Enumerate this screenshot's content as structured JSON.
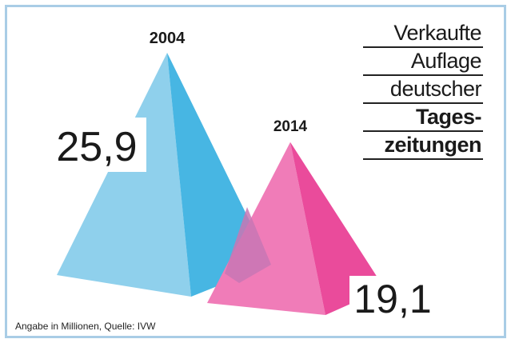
{
  "title_lines": [
    {
      "text": "Verkaufte",
      "bold": false
    },
    {
      "text": "Auflage",
      "bold": false
    },
    {
      "text": "deutscher",
      "bold": false
    },
    {
      "text": "Tages-",
      "bold": true
    },
    {
      "text": "zeitungen",
      "bold": true
    }
  ],
  "source": "Angabe in Millionen, Quelle: IVW",
  "colors": {
    "blue_light": "#8fd0ec",
    "blue_dark": "#47b6e3",
    "pink_light": "#f07cb8",
    "pink_dark": "#ea4b9b",
    "overlap": "#c877b4",
    "frame": "#a9cde6"
  },
  "chart_data": {
    "type": "bar",
    "categories": [
      "2004",
      "2014"
    ],
    "values": [
      25.9,
      19.1
    ],
    "value_labels": [
      "25,9",
      "19,1"
    ],
    "unit": "Millionen"
  }
}
